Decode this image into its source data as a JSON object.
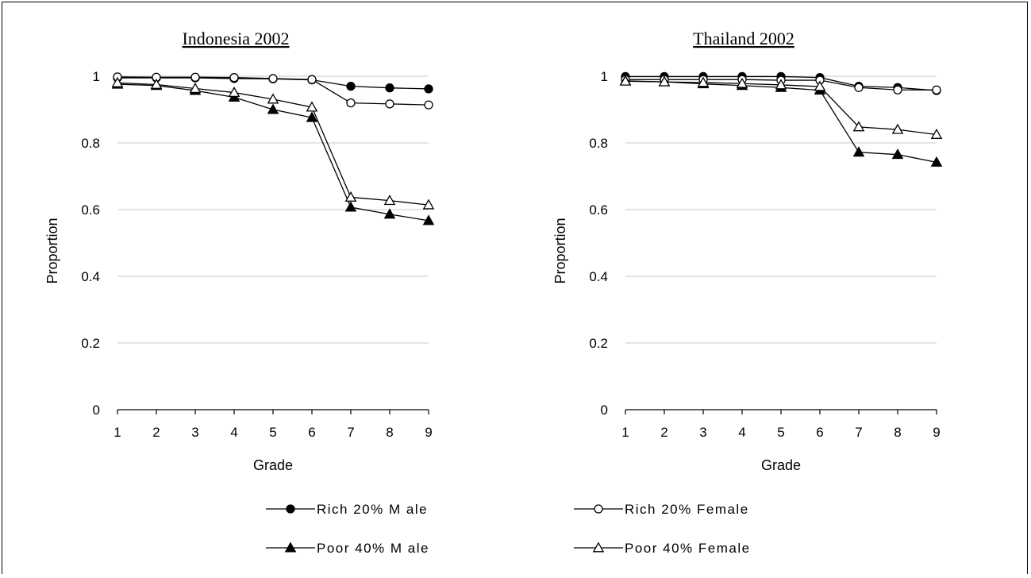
{
  "chart_data": [
    {
      "type": "line",
      "title": "Indonesia 2002",
      "xlabel": "Grade",
      "ylabel": "Proportion",
      "x": [
        1,
        2,
        3,
        4,
        5,
        6,
        7,
        8,
        9
      ],
      "ylim": [
        0,
        1
      ],
      "yticks": [
        "0",
        "0.2",
        "0.4",
        "0.6",
        "0.8",
        "1"
      ],
      "xticks": [
        "1",
        "2",
        "3",
        "4",
        "5",
        "6",
        "7",
        "8",
        "9"
      ],
      "grid": true,
      "series": [
        {
          "name": "Rich 20% Male",
          "marker": "circle-filled",
          "values": [
            0.995,
            0.995,
            0.995,
            0.993,
            0.992,
            0.989,
            0.97,
            0.965,
            0.962
          ]
        },
        {
          "name": "Rich 20% Female",
          "marker": "circle-open",
          "values": [
            0.998,
            0.997,
            0.997,
            0.996,
            0.993,
            0.99,
            0.92,
            0.917,
            0.914
          ]
        },
        {
          "name": "Poor 40% Male",
          "marker": "triangle-filled",
          "values": [
            0.976,
            0.972,
            0.957,
            0.937,
            0.9,
            0.876,
            0.607,
            0.586,
            0.567
          ]
        },
        {
          "name": "Poor 40% Female",
          "marker": "triangle-open",
          "values": [
            0.98,
            0.975,
            0.963,
            0.951,
            0.931,
            0.907,
            0.637,
            0.627,
            0.614
          ]
        }
      ]
    },
    {
      "type": "line",
      "title": "Thailand 2002",
      "xlabel": "Grade",
      "ylabel": "Proportion",
      "x": [
        1,
        2,
        3,
        4,
        5,
        6,
        7,
        8,
        9
      ],
      "ylim": [
        0,
        1
      ],
      "yticks": [
        "0",
        "0.2",
        "0.4",
        "0.6",
        "0.8",
        "1"
      ],
      "xticks": [
        "1",
        "2",
        "3",
        "4",
        "5",
        "6",
        "7",
        "8",
        "9"
      ],
      "grid": true,
      "series": [
        {
          "name": "Rich 20% Male",
          "marker": "circle-filled",
          "values": [
            0.999,
            0.999,
            0.999,
            0.999,
            0.999,
            0.996,
            0.97,
            0.966,
            0.957
          ]
        },
        {
          "name": "Rich 20% Female",
          "marker": "circle-open",
          "values": [
            0.99,
            0.99,
            0.99,
            0.99,
            0.988,
            0.988,
            0.966,
            0.959,
            0.959
          ]
        },
        {
          "name": "Poor 40% Male",
          "marker": "triangle-filled",
          "values": [
            0.986,
            0.983,
            0.977,
            0.972,
            0.966,
            0.958,
            0.772,
            0.765,
            0.742
          ]
        },
        {
          "name": "Poor 40% Female",
          "marker": "triangle-open",
          "values": [
            0.985,
            0.983,
            0.981,
            0.978,
            0.974,
            0.969,
            0.848,
            0.84,
            0.825
          ]
        }
      ]
    }
  ],
  "legend": [
    {
      "label": "Rich 20% M ale",
      "marker": "circle-filled"
    },
    {
      "label": "Rich 20% Female",
      "marker": "circle-open"
    },
    {
      "label": "Poor 40% M ale",
      "marker": "triangle-filled"
    },
    {
      "label": "Poor 40% Female",
      "marker": "triangle-open"
    }
  ],
  "colors": {
    "line": "#000000",
    "grid": "#c8c8c8",
    "background": "#ffffff"
  }
}
